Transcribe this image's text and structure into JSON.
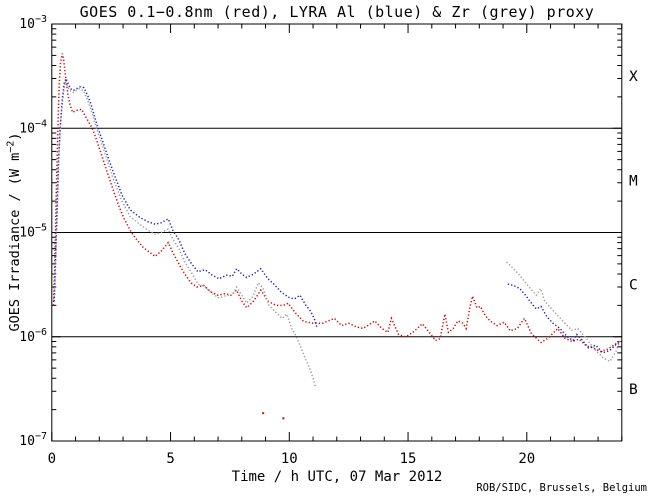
{
  "chart_data": {
    "type": "line",
    "title": "GOES 0.1−0.8nm (red), LYRA Al (blue) & Zr (grey) proxy",
    "xlabel": "Time / h UTC, 07 Mar 2012",
    "ylabel": {
      "pre": "GOES Irradiance / (W m",
      "sup": "−2",
      "post": ")"
    },
    "credit": "ROB/SIDC, Brussels, Belgium",
    "x_range": [
      0,
      24
    ],
    "x_minor_step": 1,
    "x_ticks": [
      {
        "t": 0,
        "label": "0"
      },
      {
        "t": 5,
        "label": "5"
      },
      {
        "t": 10,
        "label": "10"
      },
      {
        "t": 15,
        "label": "15"
      },
      {
        "t": 20,
        "label": "20"
      }
    ],
    "y_ticks": [
      {
        "v": 0.001,
        "exp": "−3"
      },
      {
        "v": 0.0001,
        "exp": "−4"
      },
      {
        "v": 1e-05,
        "exp": "−5"
      },
      {
        "v": 1e-06,
        "exp": "−6"
      },
      {
        "v": 1e-07,
        "exp": "−7"
      }
    ],
    "hlines": [
      0.0001,
      1e-05,
      1e-06
    ],
    "class_labels": [
      {
        "label": "X",
        "v": 0.000316
      },
      {
        "label": "M",
        "v": 3.16e-05
      },
      {
        "label": "C",
        "v": 3.16e-06
      },
      {
        "label": "B",
        "v": 3.16e-07
      }
    ],
    "colors": {
      "red": "#cf0a0a",
      "blue": "#2121bd",
      "grey": "#9d9d9d",
      "axis": "#000000"
    },
    "series": [
      {
        "name": "GOES 0.1-0.8nm",
        "color_key": "red",
        "segments": [
          [
            [
              0.07,
              2e-06
            ],
            [
              0.12,
              4.5e-06
            ],
            [
              0.16,
              1.2e-05
            ],
            [
              0.2,
              3e-05
            ],
            [
              0.24,
              7e-05
            ],
            [
              0.28,
              0.00015
            ],
            [
              0.32,
              0.00028
            ],
            [
              0.37,
              0.00043
            ],
            [
              0.44,
              0.00052
            ],
            [
              0.5,
              0.00045
            ],
            [
              0.56,
              0.00034
            ],
            [
              0.63,
              0.00025
            ],
            [
              0.7,
              0.0002
            ],
            [
              0.78,
              0.000165
            ],
            [
              0.88,
              0.000142
            ],
            [
              1.0,
              0.000147
            ],
            [
              1.12,
              0.00015
            ],
            [
              1.25,
              0.000152
            ],
            [
              1.38,
              0.000135
            ],
            [
              1.55,
              0.000115
            ],
            [
              1.7,
              0.0001
            ],
            [
              1.9,
              7.6e-05
            ],
            [
              2.1,
              5.5e-05
            ],
            [
              2.3,
              4e-05
            ],
            [
              2.55,
              2.7e-05
            ],
            [
              2.8,
              1.85e-05
            ],
            [
              3.05,
              1.35e-05
            ],
            [
              3.35,
              1e-05
            ],
            [
              3.6,
              8.4e-06
            ],
            [
              3.85,
              7.2e-06
            ],
            [
              4.1,
              6.5e-06
            ],
            [
              4.35,
              5.9e-06
            ],
            [
              4.6,
              6.6e-06
            ],
            [
              4.9,
              8e-06
            ],
            [
              5.1,
              6.4e-06
            ],
            [
              5.35,
              5e-06
            ],
            [
              5.6,
              4e-06
            ],
            [
              5.86,
              3.3e-06
            ],
            [
              6.1,
              3e-06
            ],
            [
              6.4,
              3.1e-06
            ],
            [
              6.7,
              2.7e-06
            ],
            [
              7.0,
              2.5e-06
            ],
            [
              7.3,
              2.6e-06
            ],
            [
              7.55,
              2.5e-06
            ],
            [
              7.78,
              2.8e-06
            ],
            [
              8.0,
              2.2e-06
            ],
            [
              8.2,
              1.9e-06
            ],
            [
              8.5,
              2.2e-06
            ],
            [
              8.8,
              2.8e-06
            ],
            [
              9.1,
              2.2e-06
            ],
            [
              9.45,
              2e-06
            ],
            [
              9.75,
              2e-06
            ],
            [
              9.95,
              2.1e-06
            ],
            [
              10.25,
              1.7e-06
            ],
            [
              10.6,
              1.4e-06
            ],
            [
              11.0,
              1.35e-06
            ],
            [
              11.4,
              1.35e-06
            ],
            [
              11.9,
              1.5e-06
            ],
            [
              12.2,
              1.28e-06
            ],
            [
              12.5,
              1.35e-06
            ],
            [
              12.8,
              1.25e-06
            ],
            [
              13.1,
              1.2e-06
            ],
            [
              13.35,
              1.3e-06
            ],
            [
              13.6,
              1.42e-06
            ],
            [
              13.9,
              1.2e-06
            ],
            [
              14.15,
              1.1e-06
            ],
            [
              14.3,
              1.5e-06
            ],
            [
              14.6,
              1.05e-06
            ],
            [
              14.9,
              1e-06
            ],
            [
              15.2,
              1.1e-06
            ],
            [
              15.6,
              1.33e-06
            ],
            [
              15.9,
              1.1e-06
            ],
            [
              16.15,
              9.2e-07
            ],
            [
              16.35,
              9.6e-07
            ],
            [
              16.55,
              1.65e-06
            ],
            [
              16.7,
              1.1e-06
            ],
            [
              16.9,
              1.2e-06
            ],
            [
              17.1,
              1.42e-06
            ],
            [
              17.3,
              1.35e-06
            ],
            [
              17.45,
              1.2e-06
            ],
            [
              17.6,
              1.9e-06
            ],
            [
              17.72,
              2.45e-06
            ],
            [
              17.9,
              1.9e-06
            ],
            [
              18.05,
              1.95e-06
            ],
            [
              18.25,
              1.6e-06
            ],
            [
              18.45,
              1.42e-06
            ],
            [
              18.75,
              1.28e-06
            ],
            [
              19.05,
              1.38e-06
            ],
            [
              19.3,
              1.14e-06
            ],
            [
              19.6,
              1.2e-06
            ],
            [
              19.9,
              1.5e-06
            ],
            [
              20.2,
              1.07e-06
            ],
            [
              20.6,
              8.8e-07
            ],
            [
              20.9,
              9.7e-07
            ],
            [
              21.3,
              1.2e-06
            ],
            [
              21.6,
              9.7e-07
            ],
            [
              21.9,
              9e-07
            ],
            [
              22.2,
              9.5e-07
            ],
            [
              22.5,
              8.2e-07
            ],
            [
              22.8,
              7.8e-07
            ],
            [
              23.1,
              7.2e-07
            ],
            [
              23.4,
              7.6e-07
            ],
            [
              23.7,
              8.4e-07
            ],
            [
              23.95,
              9.2e-07
            ]
          ]
        ],
        "outliers": [
          [
            8.9,
            1.85e-07
          ],
          [
            9.75,
            1.65e-07
          ]
        ]
      },
      {
        "name": "LYRA Al proxy",
        "color_key": "blue",
        "segments": [
          [
            [
              0.1,
              2.2e-06
            ],
            [
              0.16,
              6e-06
            ],
            [
              0.22,
              1.6e-05
            ],
            [
              0.28,
              4.5e-05
            ],
            [
              0.35,
              0.0001
            ],
            [
              0.44,
              0.00019
            ],
            [
              0.52,
              0.00027
            ],
            [
              0.6,
              0.0003
            ],
            [
              0.68,
              0.00027
            ],
            [
              0.78,
              0.00024
            ],
            [
              0.9,
              0.00023
            ],
            [
              1.05,
              0.00024
            ],
            [
              1.2,
              0.00025
            ],
            [
              1.35,
              0.000245
            ],
            [
              1.5,
              0.00021
            ],
            [
              1.65,
              0.00017
            ],
            [
              1.8,
              0.00013
            ],
            [
              1.95,
              0.0001
            ],
            [
              2.15,
              7.4e-05
            ],
            [
              2.4,
              5e-05
            ],
            [
              2.65,
              3.5e-05
            ],
            [
              2.95,
              2.3e-05
            ],
            [
              3.3,
              1.65e-05
            ],
            [
              3.7,
              1.4e-05
            ],
            [
              4.05,
              1.27e-05
            ],
            [
              4.35,
              1.2e-05
            ],
            [
              4.6,
              1.24e-05
            ],
            [
              4.9,
              1.35e-05
            ],
            [
              5.1,
              1.05e-05
            ],
            [
              5.35,
              8.5e-06
            ],
            [
              5.6,
              6.3e-06
            ],
            [
              5.86,
              5.1e-06
            ],
            [
              6.15,
              4.2e-06
            ],
            [
              6.45,
              4.4e-06
            ],
            [
              6.75,
              3.9e-06
            ],
            [
              7.05,
              3.6e-06
            ],
            [
              7.35,
              3.9e-06
            ],
            [
              7.6,
              3.8e-06
            ],
            [
              7.78,
              4.5e-06
            ],
            [
              8.0,
              4e-06
            ],
            [
              8.2,
              3.7e-06
            ],
            [
              8.5,
              4e-06
            ],
            [
              8.8,
              4.5e-06
            ],
            [
              9.1,
              3.6e-06
            ],
            [
              9.35,
              3.2e-06
            ],
            [
              9.65,
              2.7e-06
            ],
            [
              9.95,
              2.4e-06
            ],
            [
              10.2,
              2.3e-06
            ],
            [
              10.45,
              2.5e-06
            ],
            [
              10.7,
              2e-06
            ],
            [
              10.9,
              1.75e-06
            ],
            [
              11.05,
              1.5e-06
            ],
            [
              11.18,
              1.2e-06
            ]
          ],
          [
            [
              19.2,
              3.2e-06
            ],
            [
              19.45,
              3.1e-06
            ],
            [
              19.7,
              2.9e-06
            ],
            [
              19.95,
              2.5e-06
            ],
            [
              20.2,
              2.1e-06
            ],
            [
              20.4,
              1.85e-06
            ],
            [
              20.6,
              1.95e-06
            ],
            [
              20.85,
              1.55e-06
            ],
            [
              21.1,
              1.35e-06
            ],
            [
              21.4,
              1.2e-06
            ],
            [
              21.7,
              1e-06
            ],
            [
              21.95,
              9.2e-07
            ],
            [
              22.1,
              1.05e-06
            ],
            [
              22.35,
              9.2e-07
            ],
            [
              22.6,
              7.8e-07
            ],
            [
              22.9,
              8.3e-07
            ],
            [
              23.2,
              7e-07
            ],
            [
              23.5,
              7.4e-07
            ],
            [
              23.75,
              8.4e-07
            ],
            [
              23.95,
              9e-07
            ]
          ]
        ],
        "outliers": []
      },
      {
        "name": "LYRA Zr proxy",
        "color_key": "grey",
        "segments": [
          [
            [
              0.12,
              2.5e-06
            ],
            [
              0.18,
              7e-06
            ],
            [
              0.24,
              2e-05
            ],
            [
              0.3,
              5.5e-05
            ],
            [
              0.38,
              0.00012
            ],
            [
              0.47,
              0.0002
            ],
            [
              0.56,
              0.00028
            ],
            [
              0.64,
              0.00026
            ],
            [
              0.75,
              0.00023
            ],
            [
              0.88,
              0.00022
            ],
            [
              1.02,
              0.00023
            ],
            [
              1.18,
              0.00024
            ],
            [
              1.32,
              0.00023
            ],
            [
              1.48,
              0.000195
            ],
            [
              1.63,
              0.000155
            ],
            [
              1.78,
              0.00012
            ],
            [
              1.93,
              9.3e-05
            ],
            [
              2.15,
              6.6e-05
            ],
            [
              2.4,
              4.4e-05
            ],
            [
              2.65,
              3e-05
            ],
            [
              2.95,
              2e-05
            ],
            [
              3.3,
              1.42e-05
            ],
            [
              3.7,
              1.2e-05
            ],
            [
              4.05,
              1.05e-05
            ],
            [
              4.35,
              9.6e-06
            ],
            [
              4.6,
              1e-05
            ],
            [
              4.9,
              1.08e-05
            ],
            [
              5.1,
              8.6e-06
            ],
            [
              5.35,
              7e-06
            ],
            [
              5.6,
              5.2e-06
            ],
            [
              5.86,
              4.2e-06
            ],
            [
              6.15,
              3.2e-06
            ],
            [
              6.45,
              3e-06
            ],
            [
              6.75,
              2.6e-06
            ],
            [
              7.05,
              2.35e-06
            ],
            [
              7.35,
              2.5e-06
            ],
            [
              7.6,
              2.5e-06
            ],
            [
              7.78,
              3e-06
            ],
            [
              8.0,
              2.5e-06
            ],
            [
              8.2,
              2.1e-06
            ],
            [
              8.45,
              2.4e-06
            ],
            [
              8.7,
              3.3e-06
            ],
            [
              8.9,
              2.9e-06
            ],
            [
              9.15,
              2e-06
            ],
            [
              9.45,
              1.7e-06
            ],
            [
              9.7,
              1.5e-06
            ],
            [
              9.9,
              1.65e-06
            ],
            [
              10.1,
              1.2e-06
            ],
            [
              10.3,
              1e-06
            ],
            [
              10.5,
              7.8e-07
            ],
            [
              10.7,
              6e-07
            ],
            [
              10.85,
              5e-07
            ],
            [
              11.0,
              4e-07
            ],
            [
              11.1,
              3.3e-07
            ]
          ],
          [
            [
              19.15,
              5.2e-06
            ],
            [
              19.4,
              4.6e-06
            ],
            [
              19.65,
              4e-06
            ],
            [
              19.9,
              3.4e-06
            ],
            [
              20.15,
              2.9e-06
            ],
            [
              20.4,
              2.5e-06
            ],
            [
              20.58,
              2.9e-06
            ],
            [
              20.75,
              2.2e-06
            ],
            [
              21.0,
              1.9e-06
            ],
            [
              21.3,
              1.6e-06
            ],
            [
              21.6,
              1.35e-06
            ],
            [
              21.9,
              1.15e-06
            ],
            [
              22.15,
              1.2e-06
            ],
            [
              22.45,
              1e-06
            ],
            [
              22.7,
              8.4e-07
            ],
            [
              23.0,
              7e-07
            ],
            [
              23.25,
              6.2e-07
            ],
            [
              23.5,
              5.8e-07
            ],
            [
              23.75,
              7.2e-07
            ],
            [
              23.95,
              9.4e-07
            ]
          ]
        ],
        "outliers": []
      }
    ]
  }
}
